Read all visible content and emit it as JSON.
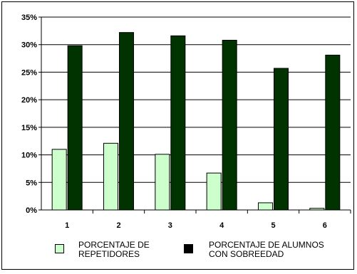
{
  "chart_data": {
    "type": "bar",
    "categories": [
      "1",
      "2",
      "3",
      "4",
      "5",
      "6"
    ],
    "series": [
      {
        "name": "PORCENTAJE DE\nREPETIDORES",
        "values": [
          11.0,
          12.1,
          10.1,
          6.7,
          1.3,
          0.3
        ],
        "color": "#ccffcc"
      },
      {
        "name": "PORCENTAJE DE ALUMNOS\nCON SOBREEDAD",
        "values": [
          29.8,
          32.2,
          31.6,
          30.8,
          25.7,
          28.1
        ],
        "color": "#003300"
      }
    ],
    "ylim": [
      0,
      35
    ],
    "yticks": [
      "0%",
      "5%",
      "10%",
      "15%",
      "20%",
      "25%",
      "30%",
      "35%"
    ],
    "grid": true,
    "legend_position": "bottom"
  }
}
